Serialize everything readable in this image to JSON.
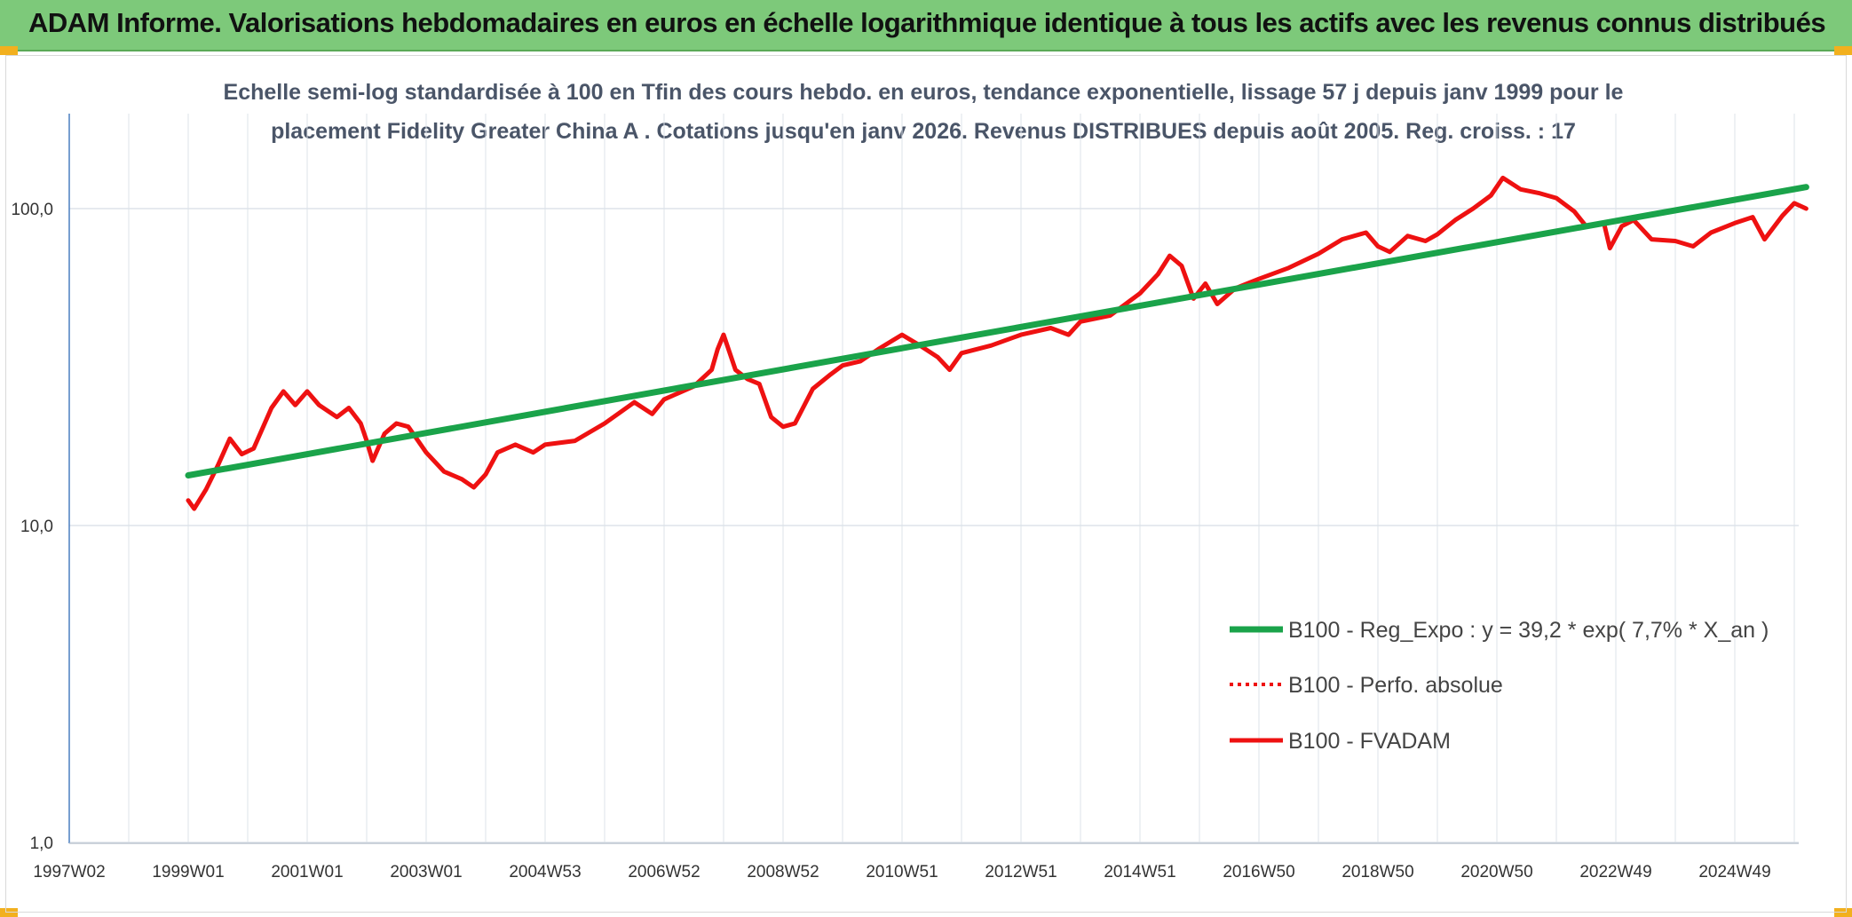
{
  "banner": {
    "title": "ADAM Informe. Valorisations hebdomadaires en euros en échelle logarithmique identique à tous les actifs avec les revenus connus distribués"
  },
  "colors": {
    "banner_bg": "#7dc97a",
    "trend": "#1aa34a",
    "fvadam": "#ee1111",
    "perfo": "#ee1111",
    "axis": "#4a7fc1",
    "grid": "#dde3ea"
  },
  "chart_data": {
    "type": "line",
    "title_line1": "Echelle semi-log standardisée à 100 en Tfin des cours hebdo. en euros, tendance exponentielle, lissage 57 j depuis janv 1999 pour le",
    "title_line2": "placement Fidelity Greater China A . Cotations jusqu'en janv 2026. Revenus DISTRIBUES depuis août 2005. Reg. croiss. : 17",
    "y_scale": "log",
    "ylim": [
      1,
      200
    ],
    "y_ticks": [
      {
        "value": 1,
        "label": "1,0"
      },
      {
        "value": 10,
        "label": "10,0"
      },
      {
        "value": 100,
        "label": "100,0"
      }
    ],
    "x_range": [
      1997.0,
      2026.2
    ],
    "x_ticks": [
      {
        "year": 1997.0,
        "label": "1997W02"
      },
      {
        "year": 1999.0,
        "label": "1999W01"
      },
      {
        "year": 2001.0,
        "label": "2001W01"
      },
      {
        "year": 2003.0,
        "label": "2003W01"
      },
      {
        "year": 2005.0,
        "label": "2004W53"
      },
      {
        "year": 2007.0,
        "label": "2006W52"
      },
      {
        "year": 2009.0,
        "label": "2008W52"
      },
      {
        "year": 2011.0,
        "label": "2010W51"
      },
      {
        "year": 2013.0,
        "label": "2012W51"
      },
      {
        "year": 2015.0,
        "label": "2014W51"
      },
      {
        "year": 2017.0,
        "label": "2016W50"
      },
      {
        "year": 2019.0,
        "label": "2018W50"
      },
      {
        "year": 2021.0,
        "label": "2020W50"
      },
      {
        "year": 2023.0,
        "label": "2022W49"
      },
      {
        "year": 2025.0,
        "label": "2024W49"
      }
    ],
    "legend_placement": "bottom-right",
    "series": [
      {
        "name": "B100 - Reg_Expo : y = 39,2 * exp( 7,7% * X_an )",
        "style": "solid-thick",
        "points": [
          [
            1999.0,
            14.4
          ],
          [
            2026.2,
            117.0
          ]
        ]
      },
      {
        "name": "B100 - Perfo. absolue",
        "style": "dotted",
        "points": []
      },
      {
        "name": "B100 - FVADAM",
        "style": "solid",
        "points": [
          [
            1999.0,
            12.0
          ],
          [
            1999.1,
            11.3
          ],
          [
            1999.3,
            13.0
          ],
          [
            1999.5,
            15.5
          ],
          [
            1999.7,
            18.8
          ],
          [
            1999.9,
            16.8
          ],
          [
            2000.1,
            17.5
          ],
          [
            2000.4,
            23.5
          ],
          [
            2000.6,
            26.5
          ],
          [
            2000.8,
            24.0
          ],
          [
            2001.0,
            26.5
          ],
          [
            2001.2,
            24.0
          ],
          [
            2001.5,
            22.0
          ],
          [
            2001.7,
            23.5
          ],
          [
            2001.9,
            21.0
          ],
          [
            2002.0,
            18.5
          ],
          [
            2002.1,
            16.0
          ],
          [
            2002.3,
            19.5
          ],
          [
            2002.5,
            21.0
          ],
          [
            2002.7,
            20.5
          ],
          [
            2003.0,
            17.0
          ],
          [
            2003.3,
            14.8
          ],
          [
            2003.6,
            14.0
          ],
          [
            2003.8,
            13.2
          ],
          [
            2004.0,
            14.5
          ],
          [
            2004.2,
            17.0
          ],
          [
            2004.5,
            18.0
          ],
          [
            2004.8,
            17.0
          ],
          [
            2005.0,
            18.0
          ],
          [
            2005.5,
            18.5
          ],
          [
            2006.0,
            21.0
          ],
          [
            2006.5,
            24.5
          ],
          [
            2006.8,
            22.5
          ],
          [
            2007.0,
            25.0
          ],
          [
            2007.5,
            27.5
          ],
          [
            2007.8,
            31.0
          ],
          [
            2007.9,
            36.0
          ],
          [
            2008.0,
            40.0
          ],
          [
            2008.2,
            31.0
          ],
          [
            2008.4,
            29.0
          ],
          [
            2008.6,
            28.0
          ],
          [
            2008.8,
            22.0
          ],
          [
            2009.0,
            20.5
          ],
          [
            2009.2,
            21.0
          ],
          [
            2009.5,
            27.0
          ],
          [
            2009.8,
            30.0
          ],
          [
            2010.0,
            32.0
          ],
          [
            2010.3,
            33.0
          ],
          [
            2010.6,
            36.0
          ],
          [
            2011.0,
            40.0
          ],
          [
            2011.3,
            37.0
          ],
          [
            2011.6,
            34.0
          ],
          [
            2011.8,
            31.0
          ],
          [
            2012.0,
            35.0
          ],
          [
            2012.5,
            37.0
          ],
          [
            2013.0,
            40.0
          ],
          [
            2013.5,
            42.0
          ],
          [
            2013.8,
            40.0
          ],
          [
            2014.0,
            44.0
          ],
          [
            2014.5,
            46.0
          ],
          [
            2015.0,
            54.0
          ],
          [
            2015.3,
            62.0
          ],
          [
            2015.5,
            71.0
          ],
          [
            2015.7,
            66.0
          ],
          [
            2015.9,
            52.0
          ],
          [
            2016.1,
            58.0
          ],
          [
            2016.3,
            50.0
          ],
          [
            2016.6,
            56.0
          ],
          [
            2017.0,
            60.0
          ],
          [
            2017.5,
            65.0
          ],
          [
            2018.0,
            72.0
          ],
          [
            2018.4,
            80.0
          ],
          [
            2018.8,
            84.0
          ],
          [
            2019.0,
            76.0
          ],
          [
            2019.2,
            73.0
          ],
          [
            2019.5,
            82.0
          ],
          [
            2019.8,
            79.0
          ],
          [
            2020.0,
            83.0
          ],
          [
            2020.3,
            92.0
          ],
          [
            2020.6,
            100.0
          ],
          [
            2020.9,
            110.0
          ],
          [
            2021.1,
            125.0
          ],
          [
            2021.4,
            115.0
          ],
          [
            2021.7,
            112.0
          ],
          [
            2022.0,
            108.0
          ],
          [
            2022.3,
            98.0
          ],
          [
            2022.5,
            88.0
          ],
          [
            2022.8,
            90.0
          ],
          [
            2022.9,
            75.0
          ],
          [
            2023.1,
            88.0
          ],
          [
            2023.3,
            92.0
          ],
          [
            2023.6,
            80.0
          ],
          [
            2024.0,
            79.0
          ],
          [
            2024.3,
            76.0
          ],
          [
            2024.6,
            84.0
          ],
          [
            2025.0,
            90.0
          ],
          [
            2025.3,
            94.0
          ],
          [
            2025.5,
            80.0
          ],
          [
            2025.8,
            95.0
          ],
          [
            2026.0,
            104.0
          ],
          [
            2026.2,
            100.0
          ]
        ]
      }
    ]
  }
}
